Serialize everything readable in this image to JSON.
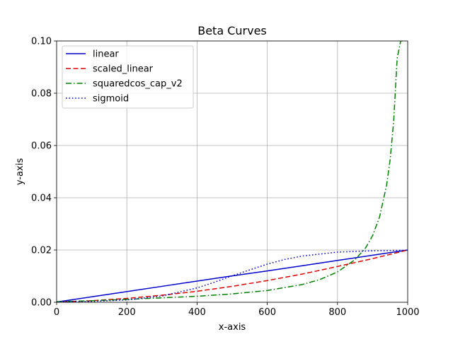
{
  "chart_data": {
    "type": "line",
    "title": "Beta Curves",
    "xlabel": "x-axis",
    "ylabel": "y-axis",
    "xlim": [
      0,
      1000
    ],
    "ylim": [
      0,
      0.1
    ],
    "xticks": [
      0,
      200,
      400,
      600,
      800,
      1000
    ],
    "yticks": [
      0.0,
      0.02,
      0.04,
      0.06,
      0.08,
      0.1
    ],
    "xtick_labels": [
      "0",
      "200",
      "400",
      "600",
      "800",
      "1000"
    ],
    "ytick_labels": [
      "0.00",
      "0.02",
      "0.04",
      "0.06",
      "0.08",
      "0.10"
    ],
    "grid": true,
    "legend_position": "top-left",
    "series": [
      {
        "name": "linear",
        "color": "#0000cc",
        "style": "solid",
        "x": [
          0,
          100,
          200,
          300,
          400,
          500,
          600,
          700,
          800,
          900,
          1000
        ],
        "y": [
          0.0001,
          0.0021,
          0.0041,
          0.0061,
          0.0081,
          0.0101,
          0.012,
          0.014,
          0.016,
          0.018,
          0.02
        ]
      },
      {
        "name": "scaled_linear",
        "color": "#dd0000",
        "style": "dashed",
        "x": [
          0,
          100,
          200,
          300,
          400,
          500,
          600,
          700,
          800,
          900,
          1000
        ],
        "y": [
          0.0001,
          0.0006,
          0.0015,
          0.0027,
          0.0042,
          0.0061,
          0.0083,
          0.0108,
          0.0137,
          0.0167,
          0.02
        ]
      },
      {
        "name": "squaredcos_cap_v2",
        "color": "#008000",
        "style": "dashdot",
        "x": [
          0,
          100,
          200,
          300,
          400,
          500,
          600,
          700,
          750,
          800,
          850,
          880,
          900,
          920,
          940,
          950,
          960,
          970,
          980,
          985
        ],
        "y": [
          0.0002,
          0.0006,
          0.0011,
          0.0017,
          0.0023,
          0.0032,
          0.0045,
          0.0068,
          0.0087,
          0.0116,
          0.0163,
          0.0208,
          0.0255,
          0.0327,
          0.0449,
          0.0546,
          0.0692,
          0.0934,
          0.1,
          0.1
        ]
      },
      {
        "name": "sigmoid",
        "color": "#0000cc",
        "style": "dotted",
        "x": [
          0,
          100,
          200,
          300,
          400,
          450,
          500,
          550,
          600,
          650,
          700,
          800,
          900,
          1000
        ],
        "y": [
          0.0001,
          0.0003,
          0.0009,
          0.0024,
          0.0055,
          0.0077,
          0.0101,
          0.0124,
          0.0146,
          0.0164,
          0.0177,
          0.0192,
          0.0197,
          0.0199
        ]
      }
    ]
  }
}
